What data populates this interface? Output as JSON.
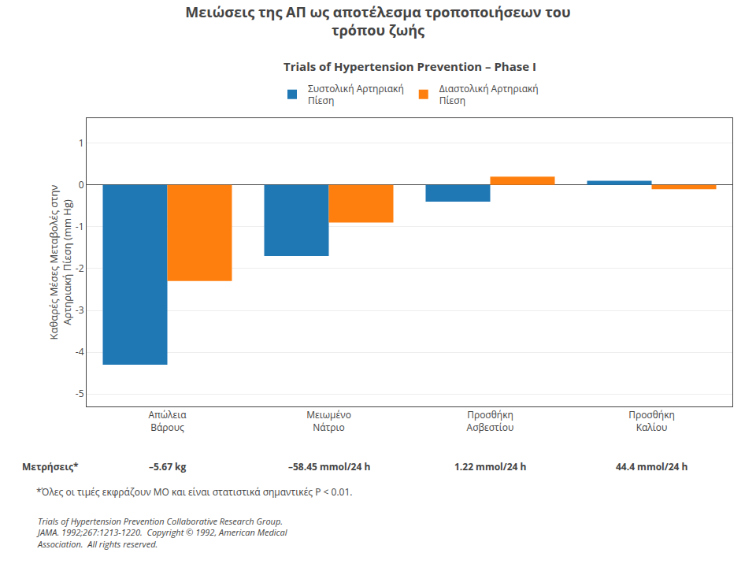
{
  "chart_data": {
    "type": "bar",
    "title": "Μειώσεις της ΑΠ ως αποτέλεσμα τροποποιήσεων του\nτρόπου ζωής",
    "subtitle": "Trials of Hypertension Prevention – Phase I",
    "ylabel": "Καθαρές Μέσες Μεταβολές στην\nΑρτηριακή Πίεση (mm Hg)",
    "categories": [
      "Απώλεια\nΒάρους",
      "Μειωμένο\nΝάτριο",
      "Προσθήκη\nΑσβεστίου",
      "Προσθήκη\nΚαλίου"
    ],
    "series": [
      {
        "name": "Συστολική Αρτηριακή\nΠίεση",
        "values": [
          -4.3,
          -1.7,
          -0.4,
          0.1
        ]
      },
      {
        "name": "Διαστολική Αρτηριακή\nΠίεση",
        "values": [
          -2.3,
          -0.9,
          0.2,
          -0.1
        ]
      }
    ],
    "ylim": [
      -5.3,
      1.6
    ],
    "yticks": [
      -5,
      -4,
      -3,
      -2,
      -1,
      0,
      1
    ],
    "grid": true,
    "legend": "top",
    "measurements_label": "Μετρήσεις*",
    "measurements": [
      "–5.67 kg",
      "–58.45 mmol/24 h",
      "1.22 mmol/24 h",
      "44.4 mmol/24 h"
    ],
    "footnote": "*Όλες οι τιμές εκφράζουν ΜΟ και είναι στατιστικά σημαντικές P < 0.01.",
    "citation": "Trials of Hypertension Prevention Collaborative Research Group.\nJAMA. 1992;267:1213-1220.  Copyright © 1992, American Medical\nAssociation.  All rights reserved."
  }
}
